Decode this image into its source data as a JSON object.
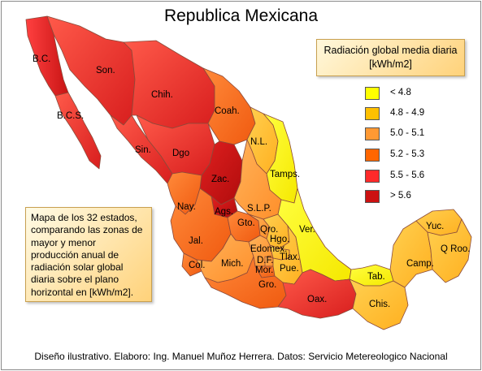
{
  "title": "Republica Mexicana",
  "legend": {
    "title_line1": "Radiación global media diaria",
    "title_line2": "[kWh/m2]",
    "items": [
      {
        "label": "< 4.8",
        "color": "#ffff00"
      },
      {
        "label": "4.8 - 4.9",
        "color": "#ffc000"
      },
      {
        "label": "5.0 - 5.1",
        "color": "#ff9933"
      },
      {
        "label": "5.2 - 5.3",
        "color": "#ff6600"
      },
      {
        "label": "5.5 - 5.6",
        "color": "#ff2a2a"
      },
      {
        "label": "> 5.6",
        "color": "#cc1111"
      }
    ]
  },
  "description": "Mapa de los 32 estados, comparando las zonas de mayor y menor producción anual de radiación solar global diaria sobre el plano horizontal en [kWh/m2].",
  "credit": "Diseño ilustrativo. Elaboro: Ing. Manuel Muñoz Herrera. Datos: Servicio Metereologico Nacional",
  "states": {
    "bc": "B.C.",
    "son": "Son.",
    "bcs": "B.C.S.",
    "chih": "Chih.",
    "coah": "Coah.",
    "sin": "Sin.",
    "dgo": "Dgo",
    "nl": "N.L.",
    "tamps": "Tamps.",
    "zac": "Zac.",
    "nay": "Nay.",
    "ags": "Ags.",
    "slp": "S.L.P.",
    "gto": "Gto.",
    "qro": "Qro.",
    "ver": "Ver.",
    "hgo": "Hgo.",
    "jal": "Jal.",
    "edomex": "Edomex.",
    "tlax": "Tlax.",
    "df": "D.F.",
    "pue": "Pue.",
    "mor": "Mor.",
    "col": "Col.",
    "mich": "Mich.",
    "yuc": "Yuc.",
    "qroo": "Q Roo.",
    "camp": "Camp.",
    "tab": "Tab.",
    "gro": "Gro.",
    "oax": "Oax.",
    "chis": "Chis."
  },
  "classes": {
    "bc": "> 5.6",
    "son": "5.5 - 5.6",
    "bcs": "5.5 - 5.6",
    "chih": "5.5 - 5.6",
    "coah": "5.2 - 5.3",
    "sin": "5.5 - 5.6",
    "dgo": "5.5 - 5.6",
    "nl": "4.8 - 4.9",
    "tamps": "< 4.8",
    "zac": "> 5.6",
    "nay": "5.2 - 5.3",
    "ags": "> 5.6",
    "slp": "5.0 - 5.1",
    "gto": "5.2 - 5.3",
    "qro": "5.0 - 5.1",
    "ver": "< 4.8",
    "hgo": "4.8 - 4.9",
    "jal": "5.2 - 5.3",
    "edomex": "5.0 - 5.1",
    "tlax": "4.8 - 4.9",
    "df": "5.0 - 5.1",
    "pue": "4.8 - 4.9",
    "mor": "5.2 - 5.3",
    "col": "5.2 - 5.3",
    "mich": "5.0 - 5.1",
    "yuc": "4.8 - 4.9",
    "qroo": "4.8 - 4.9",
    "camp": "4.8 - 4.9",
    "tab": "< 4.8",
    "gro": "5.2 - 5.3",
    "oax": "5.5 - 5.6",
    "chis": "4.8 - 4.9"
  }
}
